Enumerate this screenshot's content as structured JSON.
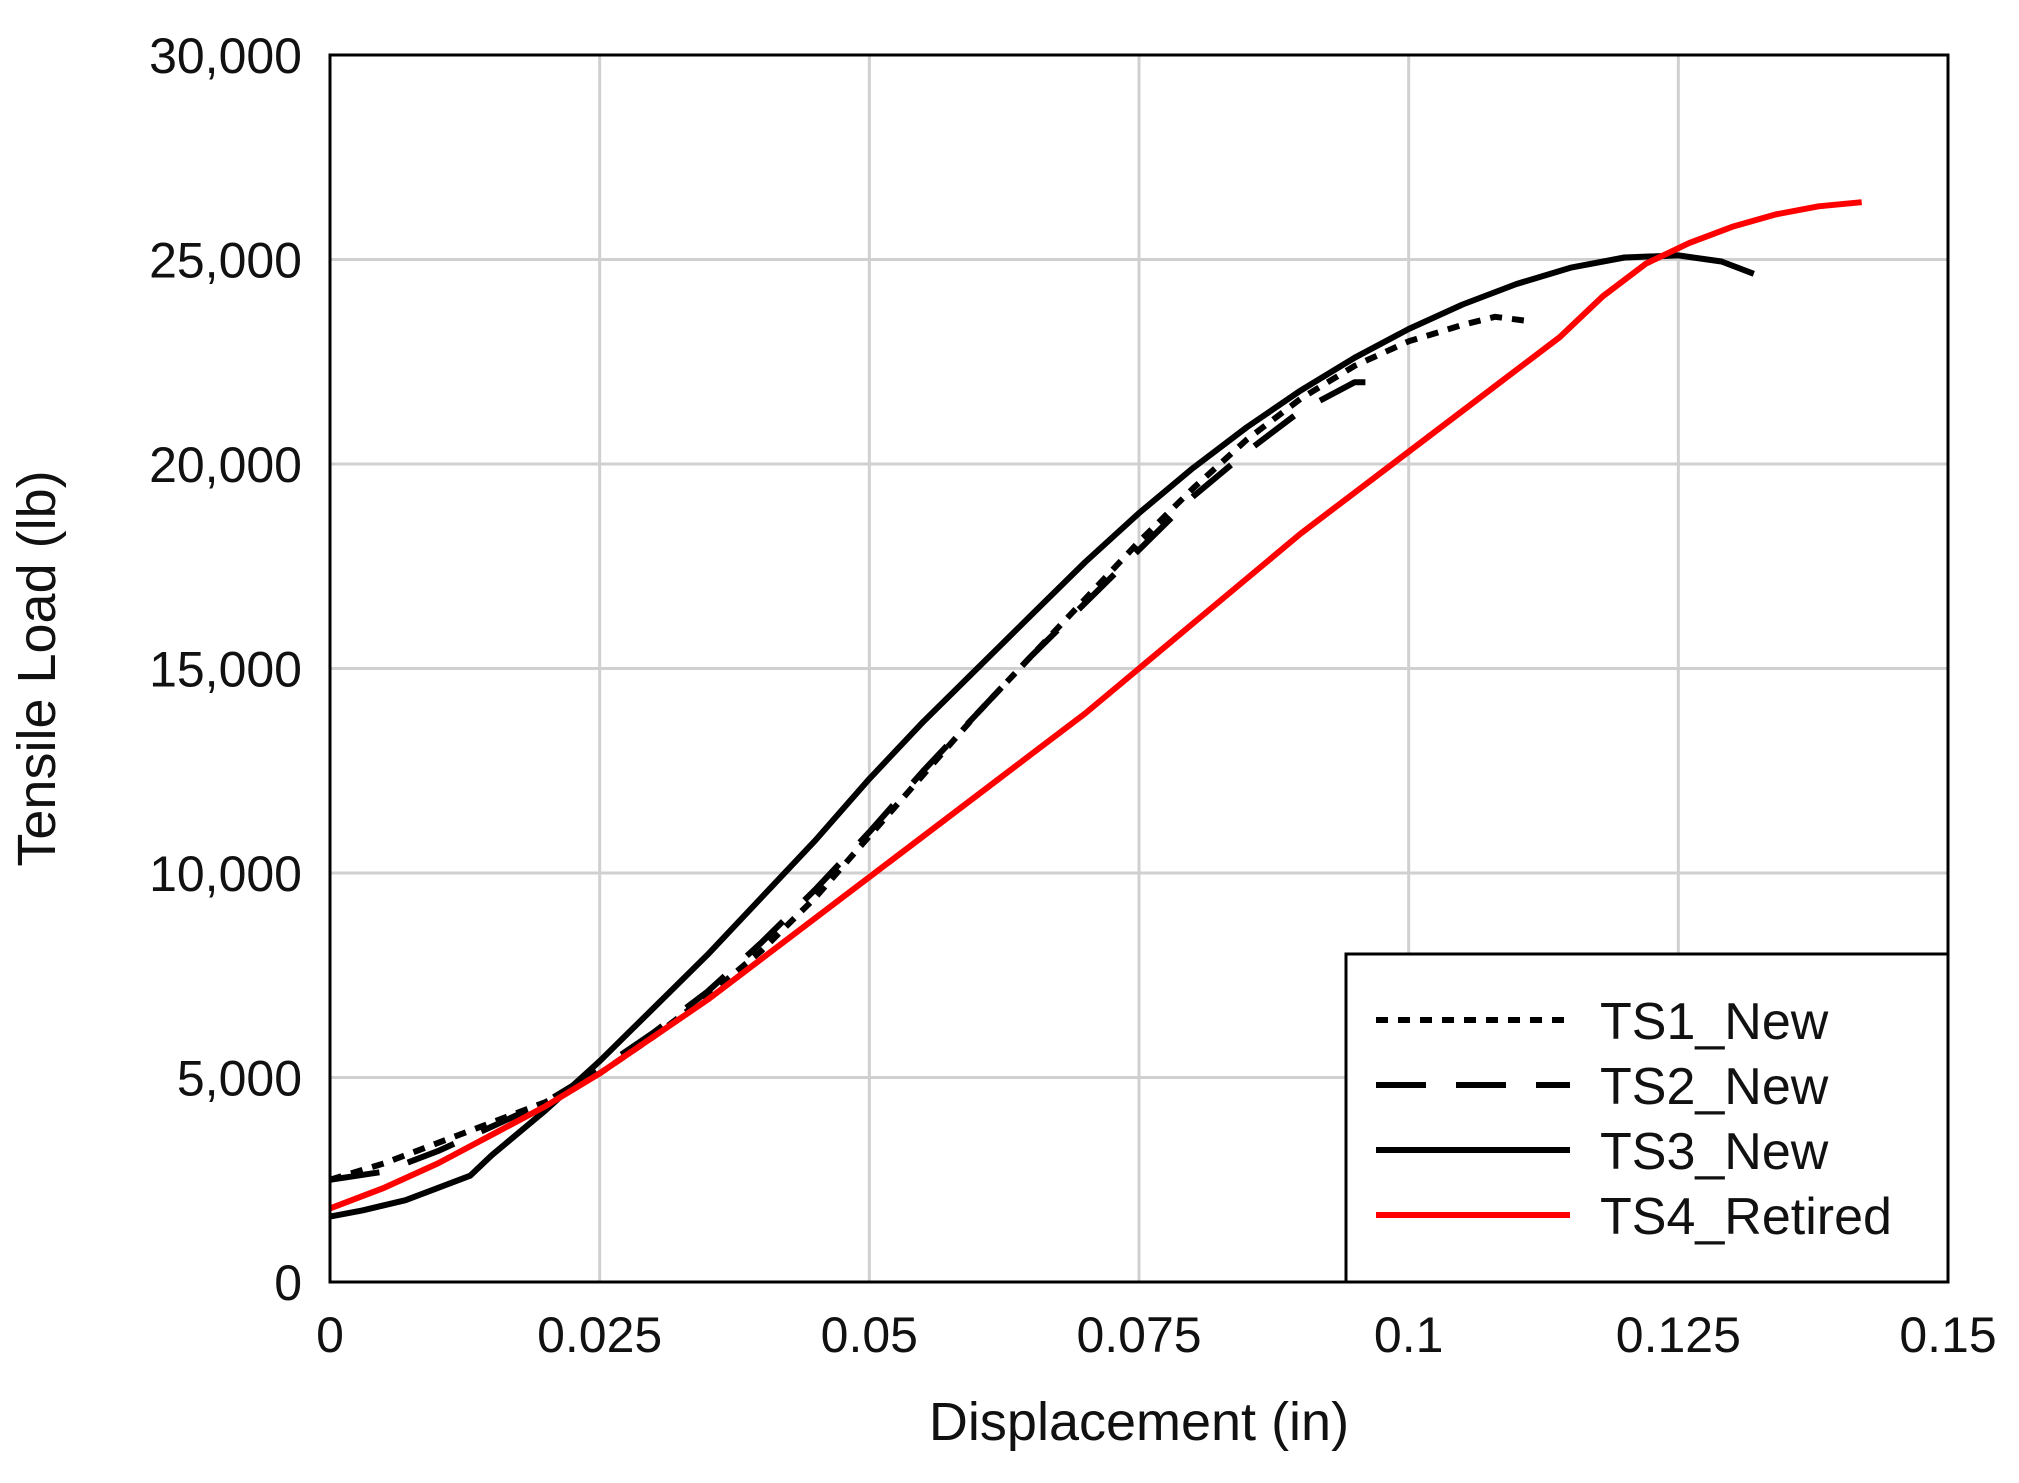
{
  "chart_data": {
    "type": "line",
    "xlabel": "Displacement (in)",
    "ylabel": "Tensile Load (lb)",
    "xlim": [
      0,
      0.15
    ],
    "ylim": [
      0,
      30000
    ],
    "x_ticks": [
      "0",
      "0.025",
      "0.05",
      "0.075",
      "0.1",
      "0.125",
      "0.15"
    ],
    "y_ticks": [
      "0",
      "5,000",
      "10,000",
      "15,000",
      "20,000",
      "25,000",
      "30,000"
    ],
    "grid": true,
    "legend_position": "bottom-right",
    "series": [
      {
        "name": "TS1_New",
        "style": "dotted",
        "color": "#000000",
        "x": [
          0,
          0.005,
          0.01,
          0.015,
          0.02,
          0.025,
          0.03,
          0.035,
          0.04,
          0.045,
          0.05,
          0.055,
          0.06,
          0.065,
          0.07,
          0.075,
          0.08,
          0.085,
          0.09,
          0.095,
          0.1,
          0.105,
          0.108,
          0.111
        ],
        "y": [
          2500,
          2900,
          3400,
          3900,
          4400,
          5100,
          6000,
          7000,
          8100,
          9400,
          10900,
          12400,
          13900,
          15300,
          16700,
          18100,
          19400,
          20600,
          21600,
          22400,
          23000,
          23400,
          23600,
          23500
        ]
      },
      {
        "name": "TS2_New",
        "style": "dashed",
        "color": "#000000",
        "x": [
          0,
          0.005,
          0.01,
          0.015,
          0.02,
          0.025,
          0.03,
          0.035,
          0.04,
          0.045,
          0.05,
          0.055,
          0.06,
          0.065,
          0.07,
          0.075,
          0.08,
          0.085,
          0.09,
          0.095,
          0.098
        ],
        "y": [
          2500,
          2700,
          3200,
          3800,
          4400,
          5200,
          6100,
          7100,
          8300,
          9600,
          11000,
          12500,
          13900,
          15300,
          16600,
          17900,
          19200,
          20300,
          21300,
          22000,
          22000
        ]
      },
      {
        "name": "TS3_New",
        "style": "solid",
        "color": "#000000",
        "x": [
          0,
          0.003,
          0.007,
          0.01,
          0.013,
          0.015,
          0.02,
          0.025,
          0.03,
          0.035,
          0.04,
          0.045,
          0.05,
          0.055,
          0.06,
          0.065,
          0.07,
          0.075,
          0.08,
          0.085,
          0.09,
          0.095,
          0.1,
          0.105,
          0.11,
          0.115,
          0.12,
          0.125,
          0.129,
          0.132
        ],
        "y": [
          1600,
          1750,
          2000,
          2300,
          2600,
          3100,
          4200,
          5400,
          6700,
          8000,
          9400,
          10800,
          12300,
          13700,
          15000,
          16300,
          17600,
          18800,
          19900,
          20900,
          21800,
          22600,
          23300,
          23900,
          24400,
          24800,
          25050,
          25100,
          24950,
          24650
        ]
      },
      {
        "name": "TS4_Retired",
        "style": "solid",
        "color": "#ff0000",
        "x": [
          0,
          0.005,
          0.01,
          0.015,
          0.02,
          0.025,
          0.03,
          0.035,
          0.04,
          0.045,
          0.05,
          0.055,
          0.06,
          0.065,
          0.07,
          0.075,
          0.08,
          0.085,
          0.09,
          0.095,
          0.1,
          0.105,
          0.11,
          0.114,
          0.118,
          0.122,
          0.126,
          0.13,
          0.134,
          0.138,
          0.142
        ],
        "y": [
          1800,
          2300,
          2900,
          3600,
          4300,
          5100,
          6000,
          6900,
          7900,
          8900,
          9900,
          10900,
          11900,
          12900,
          13900,
          15000,
          16100,
          17200,
          18300,
          19300,
          20300,
          21300,
          22300,
          23100,
          24100,
          24900,
          25400,
          25800,
          26100,
          26300,
          26400
        ]
      }
    ]
  }
}
